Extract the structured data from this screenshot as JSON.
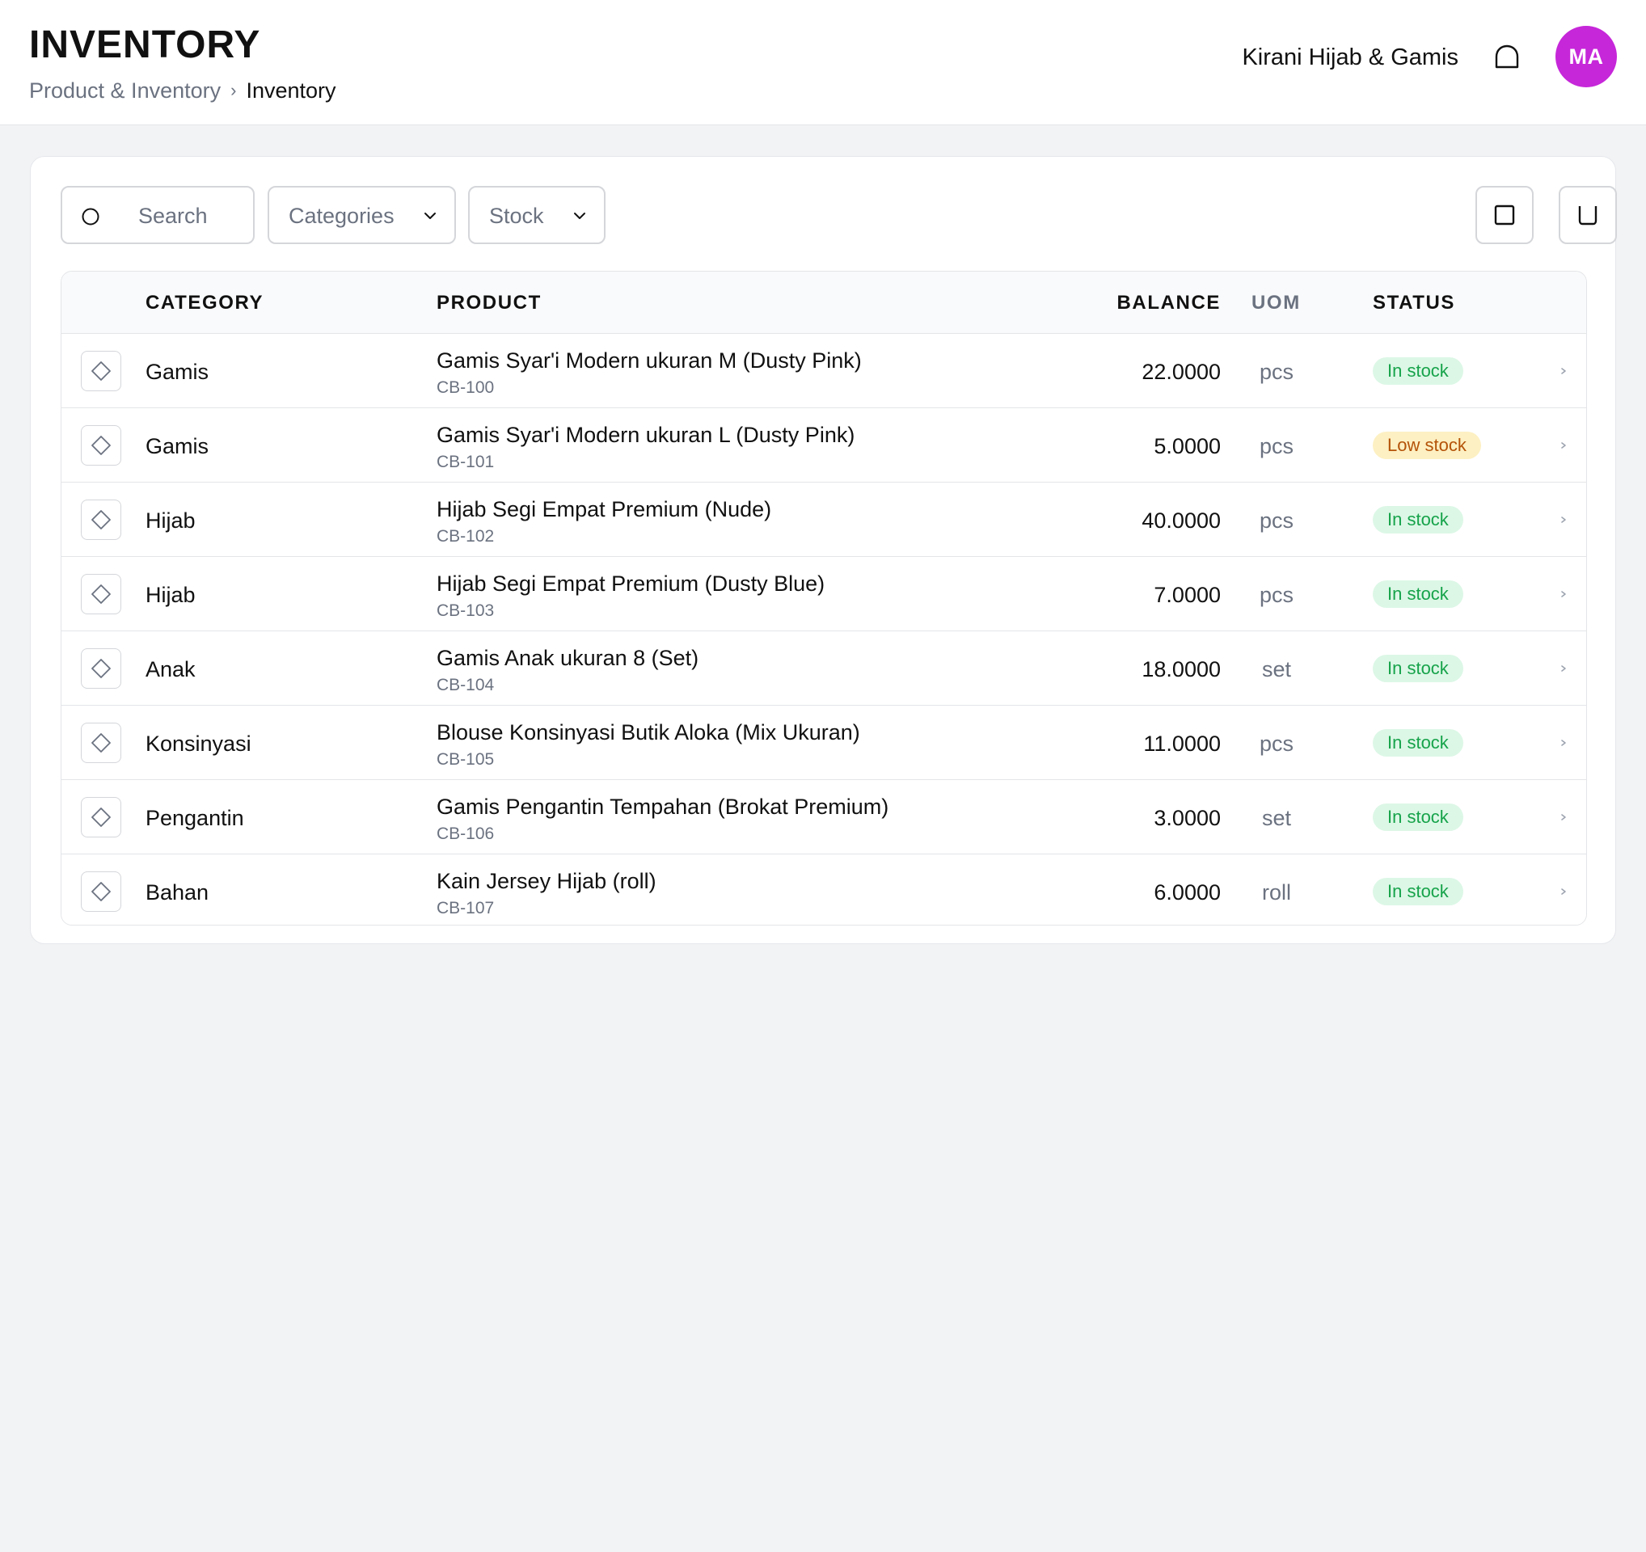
{
  "header": {
    "title": "INVENTORY",
    "breadcrumb": {
      "parent": "Product & Inventory",
      "separator": "›",
      "current": "Inventory"
    },
    "store_name": "Kirani Hijab & Gamis",
    "avatar": {
      "initials": "MA",
      "color": "#c627d9"
    },
    "bell_icon": "bell-icon"
  },
  "toolbar": {
    "search": {
      "placeholder": "Search",
      "icon": "search-icon"
    },
    "filters": [
      {
        "label": "Categories",
        "icon": "chevron-down-icon"
      },
      {
        "label": "Stock",
        "icon": "chevron-down-icon"
      }
    ],
    "actions": [
      {
        "icon": "square-icon"
      },
      {
        "icon": "bin-icon"
      }
    ]
  },
  "table": {
    "columns": {
      "category": "CATEGORY",
      "product": "PRODUCT",
      "balance": "BALANCE",
      "uom": "UOM",
      "status": "STATUS"
    },
    "rows": [
      {
        "category": "Gamis",
        "product": "Gamis Syar'i Modern ukuran M (Dusty Pink)",
        "sku": "CB-100",
        "balance": "22.0000",
        "uom": "pcs",
        "status": "In stock"
      },
      {
        "category": "Gamis",
        "product": "Gamis Syar'i Modern ukuran L (Dusty Pink)",
        "sku": "CB-101",
        "balance": "5.0000",
        "uom": "pcs",
        "status": "Low stock"
      },
      {
        "category": "Hijab",
        "product": "Hijab Segi Empat Premium (Nude)",
        "sku": "CB-102",
        "balance": "40.0000",
        "uom": "pcs",
        "status": "In stock"
      },
      {
        "category": "Hijab",
        "product": "Hijab Segi Empat Premium (Dusty Blue)",
        "sku": "CB-103",
        "balance": "7.0000",
        "uom": "pcs",
        "status": "In stock"
      },
      {
        "category": "Anak",
        "product": "Gamis Anak ukuran 8 (Set)",
        "sku": "CB-104",
        "balance": "18.0000",
        "uom": "set",
        "status": "In stock"
      },
      {
        "category": "Konsinyasi",
        "product": "Blouse Konsinyasi Butik Aloka (Mix Ukuran)",
        "sku": "CB-105",
        "balance": "11.0000",
        "uom": "pcs",
        "status": "In stock"
      },
      {
        "category": "Pengantin",
        "product": "Gamis Pengantin Tempahan (Brokat Premium)",
        "sku": "CB-106",
        "balance": "3.0000",
        "uom": "set",
        "status": "In stock"
      },
      {
        "category": "Bahan",
        "product": "Kain Jersey Hijab (roll)",
        "sku": "CB-107",
        "balance": "6.0000",
        "uom": "roll",
        "status": "In stock"
      }
    ]
  },
  "colors": {
    "in_stock_bg": "#dcf7e6",
    "in_stock_text": "#16a34a",
    "low_stock_bg": "#fdf0c2",
    "low_stock_text": "#b45309"
  }
}
